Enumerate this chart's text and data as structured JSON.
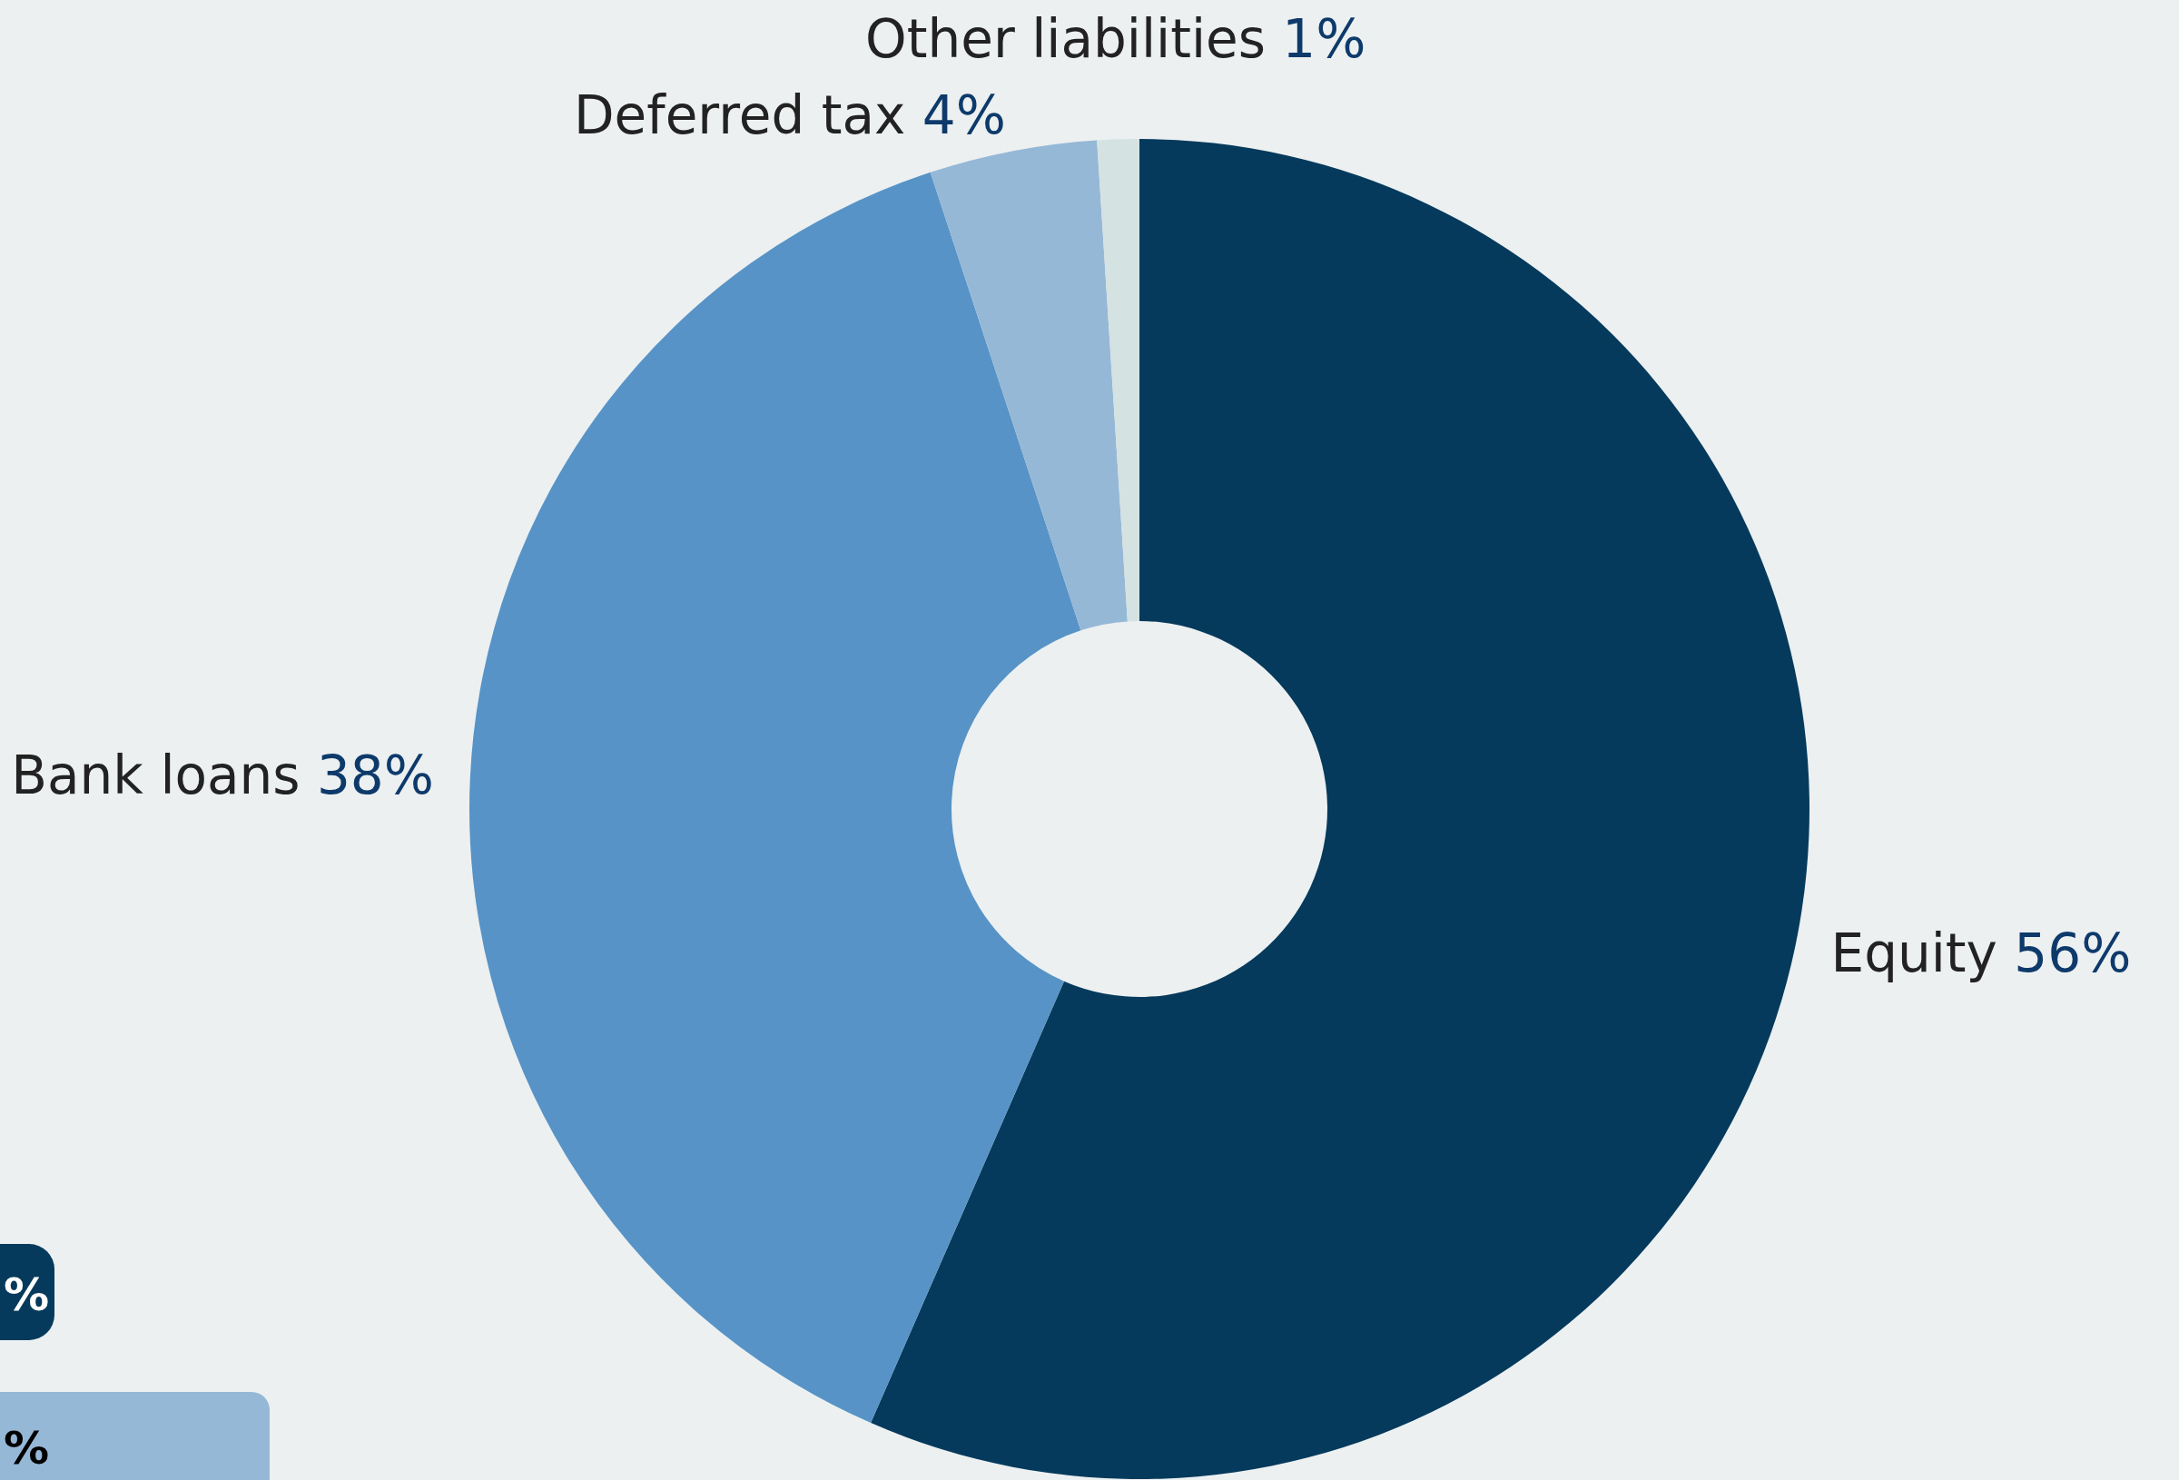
{
  "chart_data": {
    "type": "donut",
    "categories": [
      "Equity",
      "Bank loans",
      "Deferred tax",
      "Other liabilities"
    ],
    "values": [
      56,
      38,
      4,
      1
    ],
    "value_labels": [
      "56%",
      "38%",
      "4%",
      "1%"
    ],
    "colors": [
      "#053a5c",
      "#5793c6",
      "#96b8d7",
      "#d5e2e2"
    ],
    "annotations": [
      "%",
      "%"
    ]
  }
}
